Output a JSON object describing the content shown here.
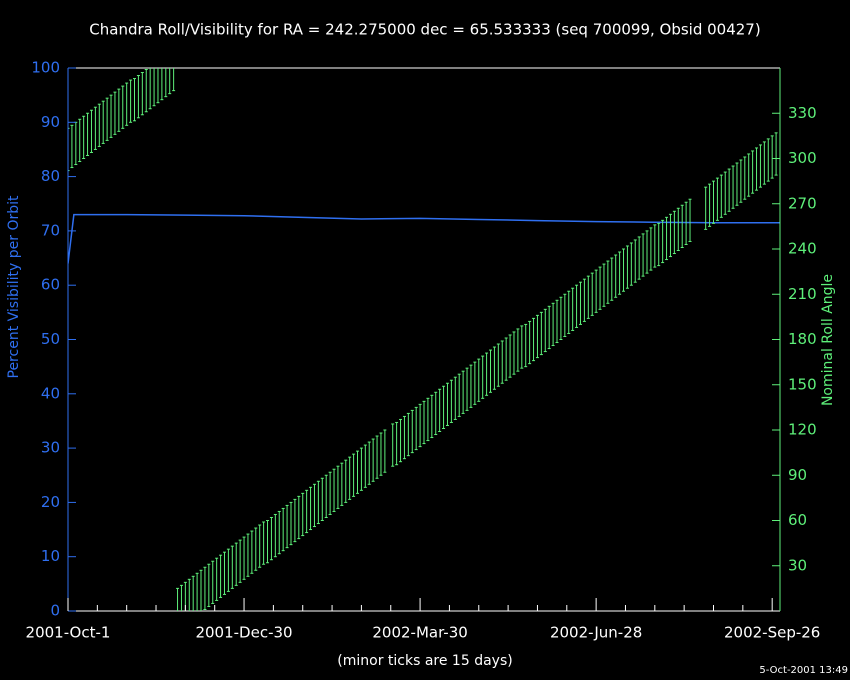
{
  "chart_data": {
    "type": "line",
    "title": "Chandra Roll/Visibility for RA = 242.275000 dec = 65.533333 (seq 700099, Obsid 00427)",
    "xlabel": "(minor ticks are 15 days)",
    "ylabel": "Percent Visibility per Orbit",
    "y2label": "Nominal Roll Angle",
    "timestamp": "5-Oct-2001 13:49",
    "xlim": [
      0,
      364
    ],
    "xticks": [
      {
        "value": 0,
        "label": "2001-Oct-1"
      },
      {
        "value": 90,
        "label": "2001-Dec-30"
      },
      {
        "value": 180,
        "label": "2002-Mar-30"
      },
      {
        "value": 270,
        "label": "2002-Jun-28"
      },
      {
        "value": 360,
        "label": "2002-Sep-26"
      }
    ],
    "xminorticks": [
      15,
      30,
      45,
      60,
      75,
      105,
      120,
      135,
      150,
      165,
      195,
      210,
      225,
      240,
      255,
      285,
      300,
      315,
      330,
      345
    ],
    "ylim": [
      0,
      100
    ],
    "yticks": [
      0,
      10,
      20,
      30,
      40,
      50,
      60,
      70,
      80,
      90,
      100
    ],
    "y2lim": [
      0,
      360
    ],
    "y2ticks": [
      30,
      60,
      90,
      120,
      150,
      180,
      210,
      240,
      270,
      300,
      330
    ],
    "series": [
      {
        "type": "line",
        "axis": "y",
        "color": "#2f6ff0",
        "x": [
          0,
          3,
          30,
          60,
          90,
          120,
          150,
          180,
          210,
          240,
          270,
          300,
          330,
          364
        ],
        "values": [
          64,
          73,
          73,
          72.9,
          72.8,
          72.5,
          72.2,
          72.3,
          72.1,
          71.9,
          71.7,
          71.6,
          71.5,
          71.5
        ]
      },
      {
        "type": "errorbar",
        "axis": "y2",
        "color": "#5ef07a",
        "error": 14,
        "x": [
          0,
          2,
          4,
          6,
          8,
          10,
          12,
          14,
          16,
          18,
          20,
          22,
          24,
          26,
          28,
          30,
          32,
          34,
          36,
          38,
          40,
          42,
          44,
          46,
          48,
          50,
          52,
          54,
          56,
          58,
          60,
          62,
          64,
          66,
          68,
          70,
          72,
          74,
          76,
          78,
          80,
          82,
          84,
          86,
          88,
          90,
          92,
          94,
          96,
          98,
          100,
          102,
          104,
          106,
          108,
          110,
          112,
          114,
          116,
          118,
          120,
          122,
          124,
          126,
          128,
          130,
          132,
          134,
          136,
          138,
          140,
          142,
          144,
          146,
          148,
          150,
          152,
          154,
          156,
          158,
          160,
          162,
          166,
          168,
          170,
          172,
          174,
          176,
          178,
          180,
          182,
          184,
          186,
          188,
          190,
          192,
          194,
          196,
          198,
          200,
          202,
          204,
          206,
          208,
          210,
          212,
          214,
          216,
          218,
          220,
          222,
          224,
          226,
          228,
          230,
          232,
          234,
          236,
          238,
          240,
          242,
          244,
          246,
          248,
          250,
          252,
          254,
          256,
          258,
          260,
          262,
          264,
          266,
          268,
          270,
          272,
          274,
          276,
          278,
          280,
          282,
          284,
          286,
          288,
          290,
          292,
          294,
          296,
          298,
          300,
          302,
          304,
          306,
          308,
          310,
          312,
          314,
          316,
          318,
          326,
          328,
          330,
          332,
          334,
          336,
          338,
          340,
          342,
          344,
          346,
          348,
          350,
          352,
          354,
          356,
          358,
          360,
          362
        ],
        "values": [
          306,
          308,
          310,
          312,
          314,
          316,
          318,
          320,
          322,
          324,
          326,
          328,
          330,
          332,
          334,
          336,
          338,
          339,
          341,
          343,
          345,
          347,
          349,
          351,
          353,
          355,
          357,
          359,
          1,
          3,
          5,
          7,
          9,
          11,
          13,
          15,
          17,
          19,
          21,
          23,
          25,
          27,
          29,
          31,
          33,
          35,
          37,
          39,
          41,
          43,
          45,
          46,
          48,
          50,
          52,
          54,
          56,
          58,
          60,
          62,
          64,
          66,
          68,
          70,
          72,
          74,
          76,
          78,
          80,
          82,
          84,
          86,
          88,
          90,
          92,
          94,
          96,
          98,
          100,
          102,
          104,
          106,
          110,
          111,
          113,
          115,
          117,
          119,
          121,
          123,
          125,
          127,
          129,
          131,
          133,
          135,
          137,
          139,
          141,
          143,
          145,
          147,
          149,
          151,
          153,
          155,
          157,
          159,
          161,
          163,
          165,
          167,
          169,
          171,
          173,
          175,
          176,
          178,
          180,
          182,
          184,
          186,
          188,
          190,
          192,
          194,
          196,
          198,
          200,
          202,
          204,
          206,
          208,
          210,
          212,
          214,
          216,
          218,
          220,
          222,
          224,
          226,
          228,
          230,
          232,
          234,
          236,
          238,
          240,
          242,
          243,
          245,
          247,
          249,
          251,
          253,
          255,
          257,
          259,
          267,
          269,
          271,
          273,
          275,
          277,
          279,
          281,
          283,
          285,
          287,
          289,
          291,
          293,
          295,
          297,
          299,
          301,
          303
        ]
      }
    ]
  }
}
